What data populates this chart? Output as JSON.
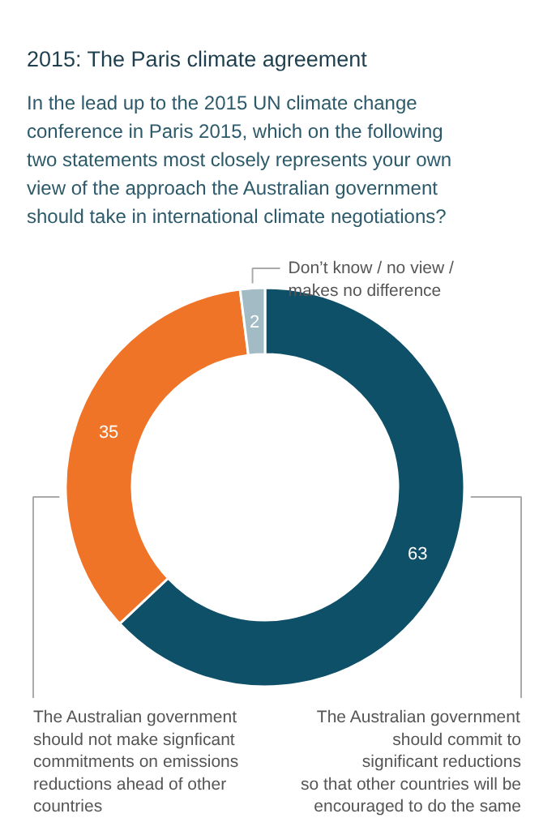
{
  "chart_data": {
    "type": "donut",
    "title": "2015: The Paris climate agreement",
    "subtitle": "In the lead up to the 2015 UN climate change conference in Paris 2015, which on the following two statements most closely represents your own view of the approach the Australian government should take in international climate negotiations?",
    "categories": [
      "The Australian government\nshould commit to\nsignificant reductions\nso that other countries will be\nencouraged to do the same",
      "The Australian government\nshould not make signficant\ncommitments on emissions\nreductions ahead of other\ncountries",
      "Don’t know / no view /\nmakes no difference"
    ],
    "values": [
      63,
      35,
      2
    ],
    "colors": [
      "#0f5069",
      "#f07428",
      "#a3bbc5"
    ],
    "data_labels": true
  }
}
